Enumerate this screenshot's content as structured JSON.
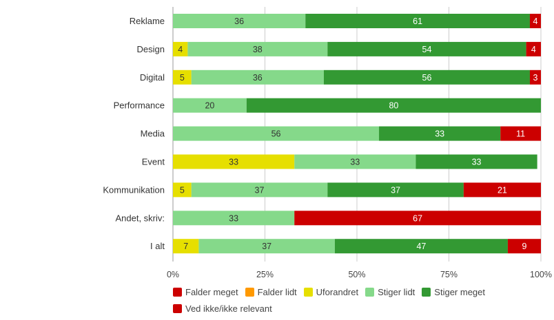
{
  "chart_data": {
    "type": "bar",
    "orientation": "horizontal",
    "stacked": true,
    "categories": [
      "Reklame",
      "Design",
      "Digital",
      "Performance",
      "Media",
      "Event",
      "Kommunikation",
      "Andet, skriv:",
      "I alt"
    ],
    "series": [
      {
        "name": "Falder meget",
        "color": "#cc0000",
        "values": [
          0,
          0,
          0,
          0,
          0,
          0,
          0,
          0,
          0
        ]
      },
      {
        "name": "Falder lidt",
        "color": "#ff9900",
        "values": [
          0,
          0,
          0,
          0,
          0,
          0,
          0,
          0,
          0
        ]
      },
      {
        "name": "Uforandret",
        "color": "#e6df00",
        "values": [
          0,
          4,
          5,
          0,
          0,
          33,
          5,
          0,
          7
        ]
      },
      {
        "name": "Stiger lidt",
        "color": "#85d98a",
        "values": [
          36,
          38,
          36,
          20,
          56,
          33,
          37,
          33,
          37
        ]
      },
      {
        "name": "Stiger meget",
        "color": "#339933",
        "values": [
          61,
          54,
          56,
          80,
          33,
          33,
          37,
          0,
          47
        ]
      },
      {
        "name": "Ved ikke/ikke relevant",
        "color": "#cc0000",
        "values": [
          4,
          4,
          3,
          0,
          11,
          0,
          21,
          67,
          9
        ]
      }
    ],
    "xticks": [
      "0%",
      "25%",
      "50%",
      "75%",
      "100%"
    ],
    "xlim": [
      0,
      100
    ],
    "grid": true,
    "legend_position": "bottom"
  }
}
